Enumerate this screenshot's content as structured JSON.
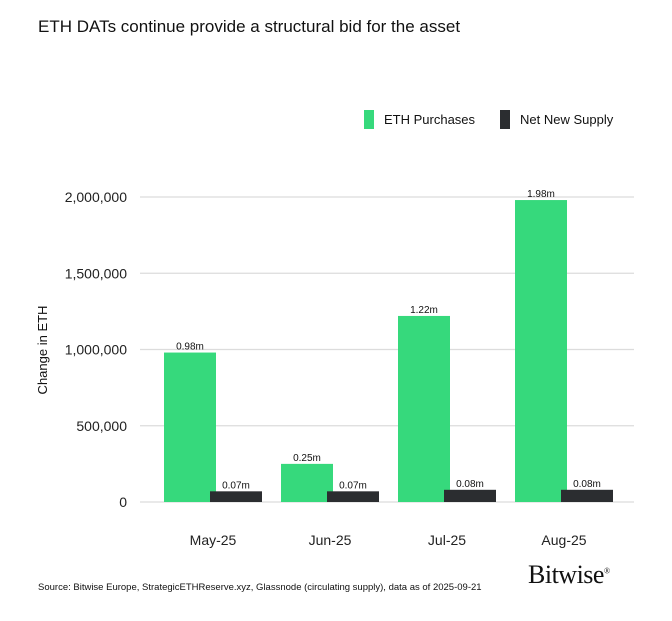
{
  "chart_data": {
    "type": "bar",
    "title": "ETH DATs continue provide a structural bid for the asset",
    "ylabel": "Change in ETH",
    "xlabel": "",
    "categories": [
      "May-25",
      "Jun-25",
      "Jul-25",
      "Aug-25"
    ],
    "series": [
      {
        "name": "ETH Purchases",
        "color": "#36d97c",
        "values": [
          980000,
          250000,
          1220000,
          1980000
        ],
        "labels": [
          "0.98m",
          "0.25m",
          "1.22m",
          "1.98m"
        ]
      },
      {
        "name": "Net New Supply",
        "color": "#2b2d30",
        "values": [
          70000,
          70000,
          80000,
          80000
        ],
        "labels": [
          "0.07m",
          "0.07m",
          "0.08m",
          "0.08m"
        ]
      }
    ],
    "ylim": [
      0,
      2000000
    ],
    "yticks": [
      0,
      500000,
      1000000,
      1500000,
      2000000
    ],
    "ytick_labels": [
      "0",
      "500,000",
      "1,000,000",
      "1,500,000",
      "2,000,000"
    ],
    "grid": true,
    "legend_position": "top-right"
  },
  "footer": {
    "source": "Source: Bitwise Europe, StrategicETHReserve.xyz, Glassnode (circulating supply), data as of 2025-09-21",
    "logo": "Bitwise"
  }
}
